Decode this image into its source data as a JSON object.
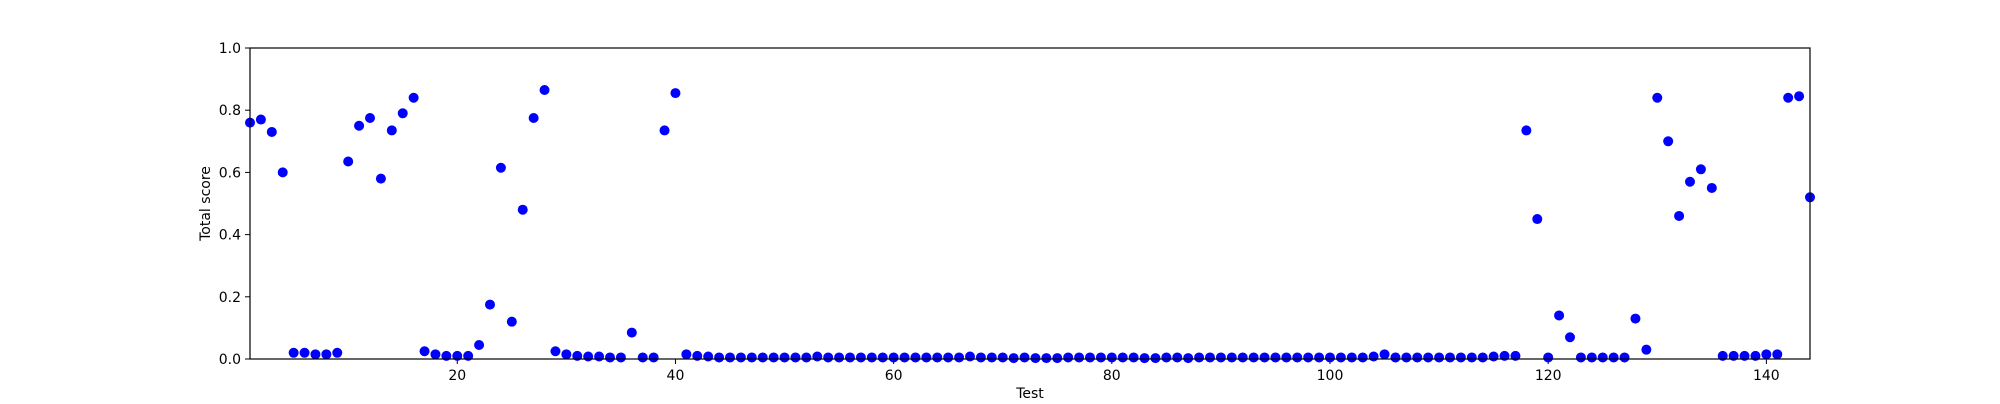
{
  "chart_data": {
    "type": "scatter",
    "xlabel": "Test",
    "ylabel": "Total score",
    "xlim": [
      1,
      144
    ],
    "ylim": [
      0.0,
      1.0
    ],
    "grid": false,
    "legend": "none",
    "marker_color": "#0000ff",
    "x_ticks": [
      20,
      40,
      60,
      80,
      100,
      120,
      140
    ],
    "x_tick_labels": [
      "20",
      "40",
      "60",
      "80",
      "100",
      "120",
      "140"
    ],
    "y_ticks": [
      0.0,
      0.2,
      0.4,
      0.6,
      0.8,
      1.0
    ],
    "y_tick_labels": [
      "0.0",
      "0.2",
      "0.4",
      "0.6",
      "0.8",
      "1.0"
    ],
    "series": [
      {
        "x": [
          1,
          2,
          3,
          4,
          5,
          6,
          7,
          8,
          9,
          10,
          11,
          12,
          13,
          14,
          15,
          16,
          17,
          18,
          19,
          20,
          21,
          22,
          23,
          24,
          25,
          26,
          27,
          28,
          29,
          30,
          31,
          32,
          33,
          34,
          35,
          36,
          37,
          38,
          39,
          40,
          41,
          42,
          43,
          44,
          45,
          46,
          47,
          48,
          49,
          50,
          51,
          52,
          53,
          54,
          55,
          56,
          57,
          58,
          59,
          60,
          61,
          62,
          63,
          64,
          65,
          66,
          67,
          68,
          69,
          70,
          71,
          72,
          73,
          74,
          75,
          76,
          77,
          78,
          79,
          80,
          81,
          82,
          83,
          84,
          85,
          86,
          87,
          88,
          89,
          90,
          91,
          92,
          93,
          94,
          95,
          96,
          97,
          98,
          99,
          100,
          101,
          102,
          103,
          104,
          105,
          106,
          107,
          108,
          109,
          110,
          111,
          112,
          113,
          114,
          115,
          116,
          117,
          118,
          119,
          120,
          121,
          122,
          123,
          124,
          125,
          126,
          127,
          128,
          129,
          130,
          131,
          132,
          133,
          134,
          135,
          136,
          137,
          138,
          139,
          140,
          141,
          142,
          143,
          144
        ],
        "y": [
          0.76,
          0.77,
          0.73,
          0.6,
          0.02,
          0.02,
          0.015,
          0.015,
          0.02,
          0.635,
          0.75,
          0.775,
          0.58,
          0.735,
          0.79,
          0.84,
          0.025,
          0.015,
          0.01,
          0.01,
          0.01,
          0.045,
          0.175,
          0.615,
          0.12,
          0.48,
          0.775,
          0.865,
          0.025,
          0.015,
          0.01,
          0.008,
          0.008,
          0.005,
          0.005,
          0.085,
          0.005,
          0.005,
          0.735,
          0.855,
          0.015,
          0.01,
          0.008,
          0.005,
          0.005,
          0.005,
          0.005,
          0.005,
          0.005,
          0.005,
          0.005,
          0.005,
          0.008,
          0.005,
          0.005,
          0.005,
          0.005,
          0.005,
          0.005,
          0.005,
          0.005,
          0.005,
          0.005,
          0.005,
          0.005,
          0.005,
          0.008,
          0.005,
          0.005,
          0.005,
          0.003,
          0.005,
          0.003,
          0.003,
          0.003,
          0.005,
          0.005,
          0.005,
          0.005,
          0.005,
          0.005,
          0.005,
          0.003,
          0.003,
          0.005,
          0.005,
          0.003,
          0.005,
          0.005,
          0.005,
          0.005,
          0.005,
          0.005,
          0.005,
          0.005,
          0.005,
          0.005,
          0.005,
          0.005,
          0.005,
          0.005,
          0.005,
          0.005,
          0.008,
          0.015,
          0.005,
          0.005,
          0.005,
          0.005,
          0.005,
          0.005,
          0.005,
          0.005,
          0.005,
          0.008,
          0.01,
          0.01,
          0.735,
          0.45,
          0.005,
          0.14,
          0.07,
          0.005,
          0.005,
          0.005,
          0.005,
          0.005,
          0.13,
          0.03,
          0.84,
          0.7,
          0.46,
          0.57,
          0.61,
          0.55,
          0.01,
          0.01,
          0.01,
          0.01,
          0.015,
          0.015,
          0.84,
          0.845,
          0.52
        ]
      }
    ]
  }
}
